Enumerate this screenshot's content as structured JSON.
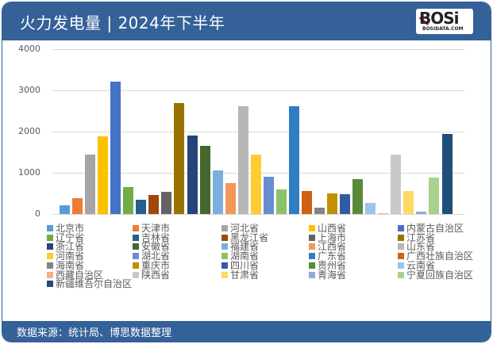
{
  "header": {
    "title": "火力发电量 | 2024年下半年",
    "logo": "BOSi",
    "logo_sub": "BOSIDATA.COM"
  },
  "footer": {
    "source": "数据来源：统计局、博思数据整理"
  },
  "chart_data": {
    "type": "bar",
    "title": "火力发电量 | 2024年下半年",
    "xlabel": "",
    "ylabel": "",
    "ylim": [
      0,
      4000
    ],
    "yticks": [
      0,
      1000,
      2000,
      3000,
      4000
    ],
    "grid": true,
    "legend_position": "bottom",
    "categories": [
      "北京市",
      "天津市",
      "河北省",
      "山西省",
      "内蒙古自治区",
      "辽宁省",
      "吉林省",
      "黑龙江省",
      "上海市",
      "江苏省",
      "浙江省",
      "安徽省",
      "福建省",
      "江西省",
      "山东省",
      "河南省",
      "湖北省",
      "湖南省",
      "广东省",
      "广西壮族自治区",
      "海南省",
      "重庆市",
      "四川省",
      "贵州省",
      "云南省",
      "西藏自治区",
      "陕西省",
      "甘肃省",
      "青海省",
      "宁夏回族自治区",
      "新疆维吾尔自治区"
    ],
    "values": [
      212,
      385,
      1442,
      1885,
      3212,
      654,
      346,
      462,
      538,
      2692,
      1904,
      1654,
      1058,
      750,
      2615,
      1442,
      904,
      596,
      2615,
      558,
      154,
      500,
      481,
      846,
      269,
      19,
      1442,
      558,
      58,
      885,
      1942
    ],
    "colors": [
      "#5b9bd5",
      "#ed7d31",
      "#a5a5a5",
      "#ffc000",
      "#4472c4",
      "#70ad47",
      "#255e91",
      "#9e480e",
      "#636363",
      "#997300",
      "#264478",
      "#43682b",
      "#7cafdd",
      "#f1975a",
      "#b7b7b7",
      "#ffcd33",
      "#698ed0",
      "#8cc168",
      "#327dc2",
      "#d26012",
      "#848484",
      "#c09100",
      "#335aa1",
      "#5a8a39",
      "#9dc3e6",
      "#f4b183",
      "#c9c9c9",
      "#ffd966",
      "#8faadc",
      "#a9d18e",
      "#1f4e79"
    ]
  }
}
